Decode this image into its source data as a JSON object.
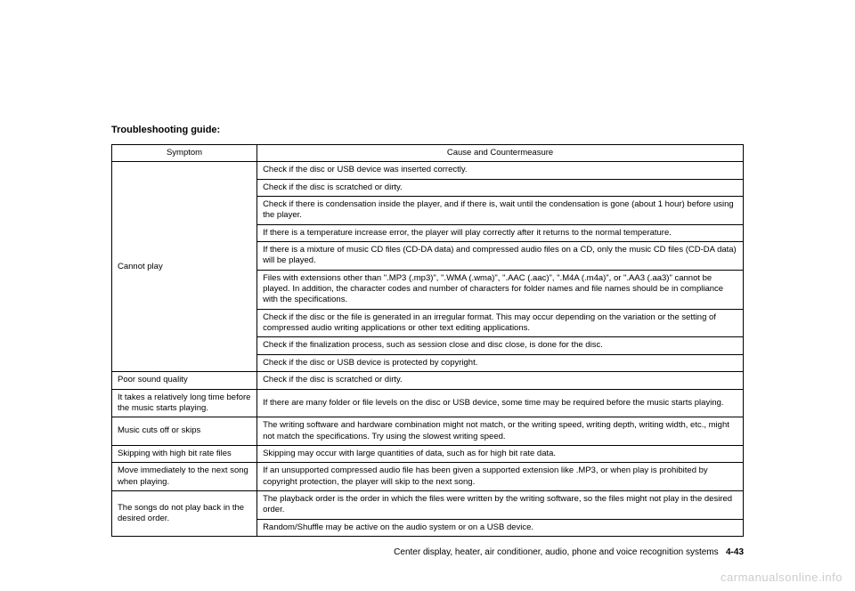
{
  "heading": "Troubleshooting guide:",
  "columns": {
    "symptom": "Symptom",
    "cause": "Cause and Countermeasure"
  },
  "rows": [
    {
      "symptom": "Cannot play",
      "rowspan": 9,
      "causes": [
        "Check if the disc or USB device was inserted correctly.",
        "Check if the disc is scratched or dirty.",
        "Check if there is condensation inside the player, and if there is, wait until the condensation is gone (about 1 hour) before using the player.",
        "If there is a temperature increase error, the player will play correctly after it returns to the normal temperature.",
        "If there is a mixture of music CD files (CD-DA data) and compressed audio files on a CD, only the music CD files (CD-DA data) will be played.",
        "Files with extensions other than \".MP3 (.mp3)\", \".WMA (.wma)\", \".AAC (.aac)\", \".M4A (.m4a)\", or \".AA3 (.aa3)\" cannot be played. In addition, the character codes and number of characters for folder names and file names should be in compliance with the specifications.",
        "Check if the disc or the file is generated in an irregular format. This may occur depending on the variation or the setting of compressed audio writing applications or other text editing applications.",
        "Check if the finalization process, such as session close and disc close, is done for the disc.",
        "Check if the disc or USB device is protected by copyright."
      ]
    },
    {
      "symptom": "Poor sound quality",
      "rowspan": 1,
      "causes": [
        "Check if the disc is scratched or dirty."
      ]
    },
    {
      "symptom": "It takes a relatively long time before the music starts playing.",
      "rowspan": 1,
      "causes": [
        "If there are many folder or file levels on the disc or USB device, some time may be required before the music starts playing."
      ]
    },
    {
      "symptom": "Music cuts off or skips",
      "rowspan": 1,
      "causes": [
        "The writing software and hardware combination might not match, or the writing speed, writing depth, writing width, etc., might not match the specifications. Try using the slowest writing speed."
      ]
    },
    {
      "symptom": "Skipping with high bit rate files",
      "rowspan": 1,
      "causes": [
        "Skipping may occur with large quantities of data, such as for high bit rate data."
      ]
    },
    {
      "symptom": "Move immediately to the next song when playing.",
      "rowspan": 1,
      "causes": [
        "If an unsupported compressed audio file has been given a supported extension like .MP3, or when play is prohibited by copyright protection, the player will skip to the next song."
      ]
    },
    {
      "symptom": "The songs do not play back in the desired order.",
      "rowspan": 2,
      "causes": [
        "The playback order is the order in which the files were written by the writing software, so the files might not play in the desired order.",
        "Random/Shuffle may be active on the audio system or on a USB device."
      ]
    }
  ],
  "footer": {
    "section": "Center display, heater, air conditioner, audio, phone and voice recognition systems",
    "page": "4-43"
  },
  "watermark": "carmanualsonline.info"
}
